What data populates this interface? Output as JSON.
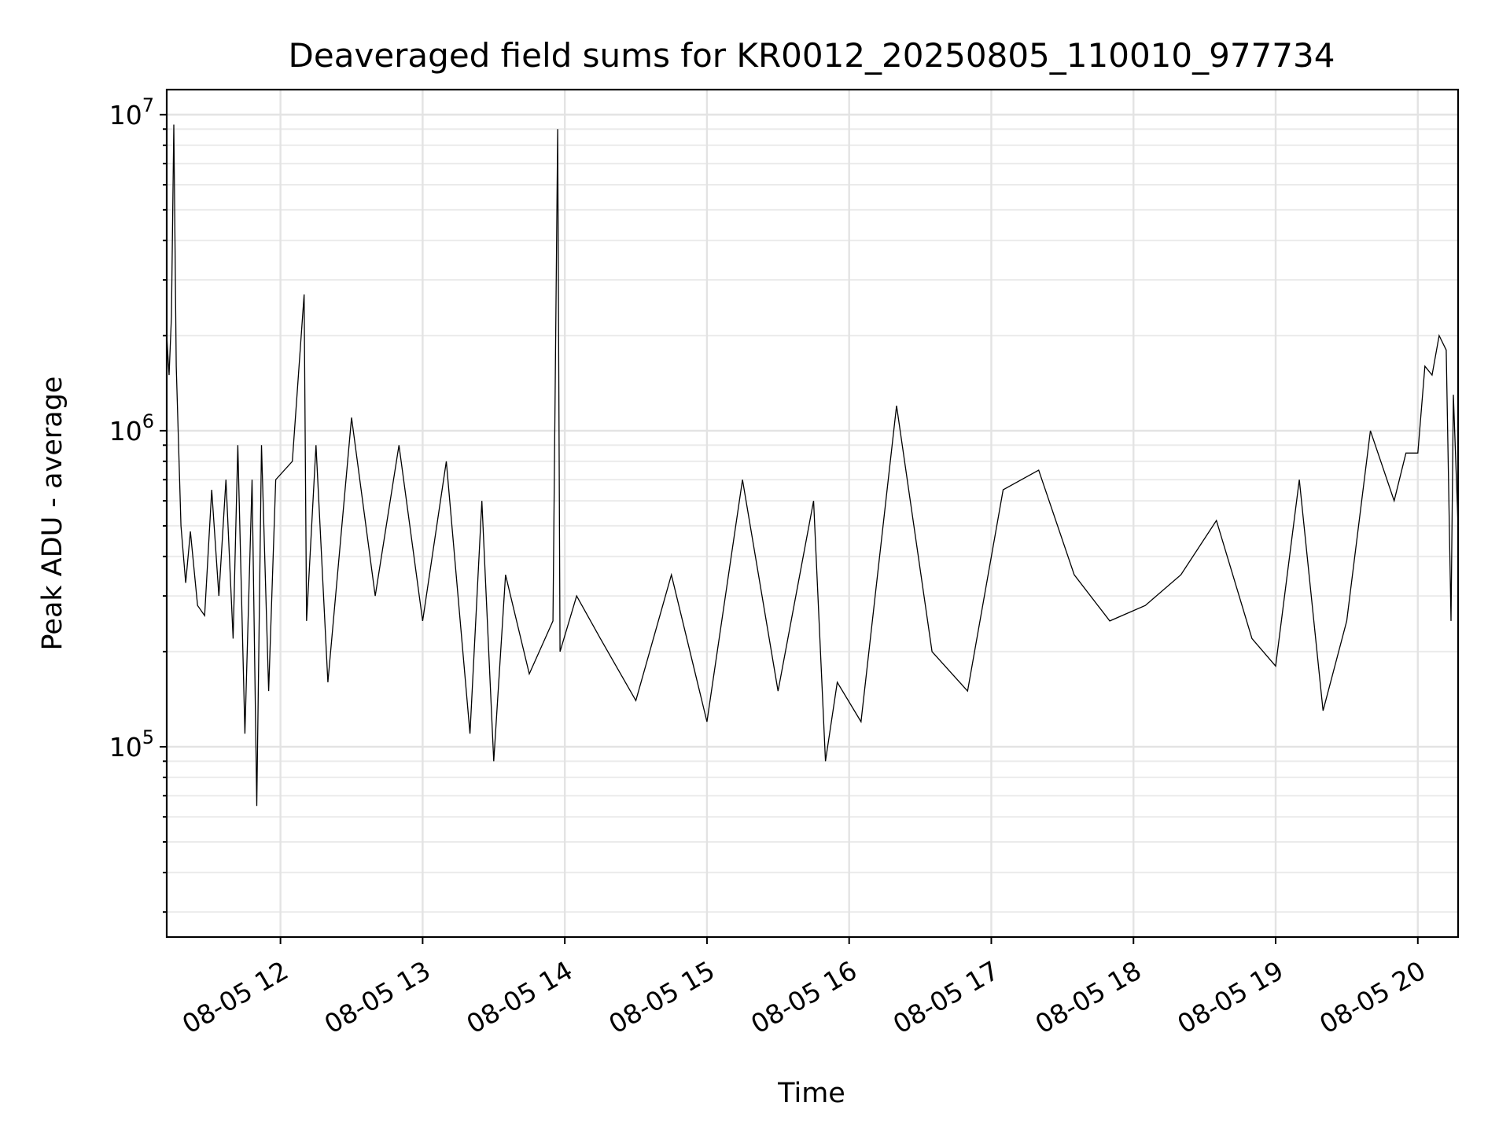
{
  "chart_data": {
    "type": "line",
    "title": "Deaveraged field sums for KR0012_20250805_110010_977734",
    "xlabel": "Time",
    "ylabel": "Peak ADU - average",
    "y_scale": "log",
    "ylim": [
      25000,
      12000000
    ],
    "xlim": [
      "2025-08-05 11:12",
      "2025-08-05 20:17"
    ],
    "grid": true,
    "line_color": "#000000",
    "x_tick_labels": [
      "08-05 12",
      "08-05 13",
      "08-05 14",
      "08-05 15",
      "08-05 16",
      "08-05 17",
      "08-05 18",
      "08-05 19",
      "08-05 20"
    ],
    "x_tick_values": [
      "2025-08-05 12:00",
      "2025-08-05 13:00",
      "2025-08-05 14:00",
      "2025-08-05 15:00",
      "2025-08-05 16:00",
      "2025-08-05 17:00",
      "2025-08-05 18:00",
      "2025-08-05 19:00",
      "2025-08-05 20:00"
    ],
    "y_ticks": [
      {
        "value": 100000,
        "base": "10",
        "exp": "5"
      },
      {
        "value": 1000000,
        "base": "10",
        "exp": "6"
      },
      {
        "value": 10000000,
        "base": "10",
        "exp": "7"
      }
    ],
    "series": [
      {
        "x": [
          "2025-08-05 11:12",
          "2025-08-05 11:13",
          "2025-08-05 11:14",
          "2025-08-05 11:15",
          "2025-08-05 11:16",
          "2025-08-05 11:18",
          "2025-08-05 11:20",
          "2025-08-05 11:22",
          "2025-08-05 11:25",
          "2025-08-05 11:28",
          "2025-08-05 11:31",
          "2025-08-05 11:34",
          "2025-08-05 11:37",
          "2025-08-05 11:40",
          "2025-08-05 11:42",
          "2025-08-05 11:45",
          "2025-08-05 11:48",
          "2025-08-05 11:50",
          "2025-08-05 11:52",
          "2025-08-05 11:55",
          "2025-08-05 11:58",
          "2025-08-05 12:05",
          "2025-08-05 12:10",
          "2025-08-05 12:11",
          "2025-08-05 12:15",
          "2025-08-05 12:20",
          "2025-08-05 12:30",
          "2025-08-05 12:40",
          "2025-08-05 12:50",
          "2025-08-05 13:00",
          "2025-08-05 13:10",
          "2025-08-05 13:20",
          "2025-08-05 13:25",
          "2025-08-05 13:30",
          "2025-08-05 13:35",
          "2025-08-05 13:45",
          "2025-08-05 13:55",
          "2025-08-05 13:57",
          "2025-08-05 13:58",
          "2025-08-05 14:05",
          "2025-08-05 14:15",
          "2025-08-05 14:30",
          "2025-08-05 14:45",
          "2025-08-05 15:00",
          "2025-08-05 15:15",
          "2025-08-05 15:30",
          "2025-08-05 15:45",
          "2025-08-05 15:50",
          "2025-08-05 15:55",
          "2025-08-05 16:05",
          "2025-08-05 16:20",
          "2025-08-05 16:35",
          "2025-08-05 16:50",
          "2025-08-05 17:05",
          "2025-08-05 17:20",
          "2025-08-05 17:35",
          "2025-08-05 17:50",
          "2025-08-05 18:05",
          "2025-08-05 18:20",
          "2025-08-05 18:35",
          "2025-08-05 18:50",
          "2025-08-05 19:00",
          "2025-08-05 19:10",
          "2025-08-05 19:20",
          "2025-08-05 19:30",
          "2025-08-05 19:40",
          "2025-08-05 19:50",
          "2025-08-05 19:55",
          "2025-08-05 20:00",
          "2025-08-05 20:03",
          "2025-08-05 20:06",
          "2025-08-05 20:09",
          "2025-08-05 20:12",
          "2025-08-05 20:14",
          "2025-08-05 20:15",
          "2025-08-05 20:17"
        ],
        "y": [
          2000000,
          1500000,
          2300000,
          9300000,
          1600000,
          500000,
          330000,
          480000,
          280000,
          260000,
          650000,
          300000,
          700000,
          220000,
          900000,
          110000,
          700000,
          65000,
          900000,
          150000,
          700000,
          800000,
          2700000,
          250000,
          900000,
          160000,
          1100000,
          300000,
          900000,
          250000,
          800000,
          110000,
          600000,
          90000,
          350000,
          170000,
          250000,
          9000000,
          200000,
          300000,
          220000,
          140000,
          350000,
          120000,
          700000,
          150000,
          600000,
          90000,
          160000,
          120000,
          1200000,
          200000,
          150000,
          650000,
          750000,
          350000,
          250000,
          280000,
          350000,
          520000,
          220000,
          180000,
          700000,
          130000,
          250000,
          1000000,
          600000,
          850000,
          850000,
          1600000,
          1500000,
          2000000,
          1800000,
          250000,
          1300000,
          500000
        ]
      }
    ]
  }
}
